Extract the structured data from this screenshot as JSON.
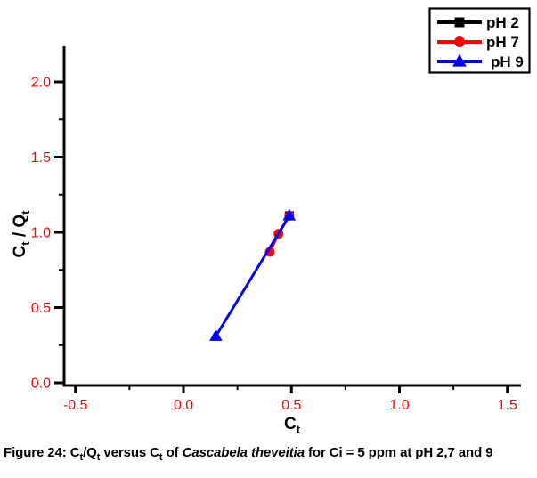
{
  "figure": {
    "background": "#ffffff",
    "caption": {
      "text": "Figure 24: Ct/Qt versus Ct of Cascabela theveitia for Ci = 5 ppm at pH 2,7 and 9",
      "segments": [
        {
          "t": "Figure 24: C"
        },
        {
          "t": "t",
          "sub": true
        },
        {
          "t": "/Q"
        },
        {
          "t": "t",
          "sub": true
        },
        {
          "t": " versus C"
        },
        {
          "t": "t",
          "sub": true
        },
        {
          "t": " of "
        },
        {
          "t": "Cascabela theveitia",
          "italic": true
        },
        {
          "t": " for Ci = 5 ppm at pH 2,7 and 9"
        }
      ]
    }
  },
  "chart_data": {
    "type": "line",
    "title": "",
    "xlabel": "Ct",
    "ylabel": "Ct / Qt",
    "xlabel_segments": [
      {
        "t": "C"
      },
      {
        "t": "t",
        "sub": true
      }
    ],
    "ylabel_segments": [
      {
        "t": "C"
      },
      {
        "t": "t",
        "sub": true
      },
      {
        "t": " / Q"
      },
      {
        "t": "t",
        "sub": true
      }
    ],
    "xlim": [
      -0.55,
      1.57
    ],
    "ylim": [
      0,
      2.25
    ],
    "x_major_ticks": [
      -0.5,
      0.0,
      0.5,
      1.0,
      1.5
    ],
    "x_minor_ticks": [
      -0.25,
      0.25,
      0.75,
      1.25
    ],
    "y_major_ticks": [
      0.0,
      0.5,
      1.0,
      1.5,
      2.0
    ],
    "y_minor_ticks": [
      0.25,
      0.75,
      1.25,
      1.75
    ],
    "grid": false,
    "tick_label_color": "#ff0000",
    "axis_color": "#000000",
    "legend": {
      "position": "top-right",
      "border_color": "#000000",
      "entries": [
        "pH 2",
        "pH 7",
        "pH 9"
      ]
    },
    "series": [
      {
        "name": "pH 2",
        "color": "#000000",
        "marker": "square",
        "points": [
          [
            0.49,
            1.11
          ]
        ]
      },
      {
        "name": "pH 7",
        "color": "#ff0000",
        "marker": "circle",
        "points": [
          [
            0.4,
            0.87
          ],
          [
            0.44,
            0.99
          ],
          [
            0.49,
            1.11
          ]
        ]
      },
      {
        "name": "pH 9",
        "color": "#0000ff",
        "marker": "triangle",
        "points": [
          [
            0.15,
            0.31
          ],
          [
            0.49,
            1.11
          ]
        ]
      }
    ]
  }
}
